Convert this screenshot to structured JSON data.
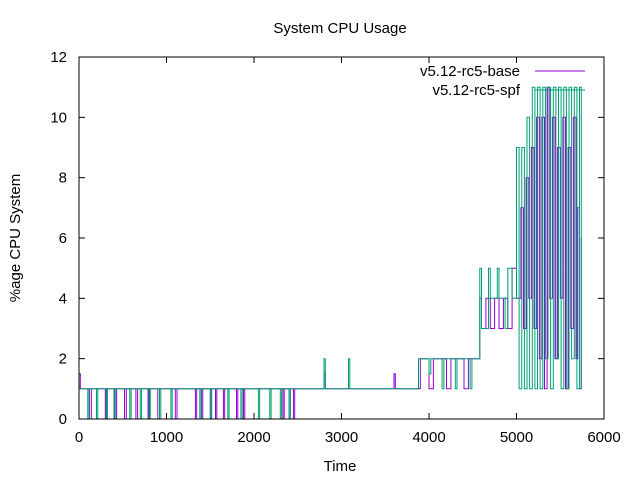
{
  "chart_data": {
    "type": "line",
    "title": "System CPU Usage",
    "xlabel": "Time",
    "ylabel": "%age CPU System",
    "xlim": [
      0,
      6000
    ],
    "ylim": [
      0,
      12
    ],
    "xticks": [
      0,
      1000,
      2000,
      3000,
      4000,
      5000,
      6000
    ],
    "yticks": [
      0,
      2,
      4,
      6,
      8,
      10,
      12
    ],
    "grid": false,
    "legend_position": "top-right",
    "step": "steps",
    "series": [
      {
        "name": "v5.12-rc5-base",
        "color": "#9400d3",
        "points": [
          [
            0,
            1.5
          ],
          [
            15,
            1
          ],
          [
            120,
            0
          ],
          [
            140,
            1
          ],
          [
            300,
            0
          ],
          [
            320,
            1
          ],
          [
            410,
            0
          ],
          [
            430,
            1
          ],
          [
            520,
            0
          ],
          [
            540,
            1
          ],
          [
            650,
            0
          ],
          [
            670,
            1
          ],
          [
            790,
            0
          ],
          [
            810,
            1
          ],
          [
            900,
            0
          ],
          [
            920,
            1
          ],
          [
            1100,
            0
          ],
          [
            1120,
            1
          ],
          [
            1330,
            0
          ],
          [
            1345,
            1
          ],
          [
            1400,
            0
          ],
          [
            1415,
            1
          ],
          [
            1500,
            0
          ],
          [
            1515,
            1
          ],
          [
            1560,
            0
          ],
          [
            1575,
            1
          ],
          [
            1650,
            0
          ],
          [
            1665,
            1
          ],
          [
            1800,
            0
          ],
          [
            1815,
            1
          ],
          [
            1880,
            0
          ],
          [
            1895,
            1
          ],
          [
            2330,
            0
          ],
          [
            2345,
            1
          ],
          [
            2400,
            0
          ],
          [
            2415,
            1
          ],
          [
            2450,
            0
          ],
          [
            2465,
            1
          ],
          [
            2800,
            1.5
          ],
          [
            2815,
            1
          ],
          [
            3600,
            1.5
          ],
          [
            3615,
            1
          ],
          [
            3900,
            2
          ],
          [
            4000,
            1
          ],
          [
            4050,
            2
          ],
          [
            4200,
            1
          ],
          [
            4250,
            2
          ],
          [
            4400,
            1
          ],
          [
            4450,
            2
          ],
          [
            4580,
            4
          ],
          [
            4600,
            3
          ],
          [
            4650,
            4
          ],
          [
            4700,
            3
          ],
          [
            4750,
            4
          ],
          [
            4800,
            3
          ],
          [
            4850,
            4
          ],
          [
            4900,
            3
          ],
          [
            4950,
            5
          ],
          [
            5000,
            4
          ],
          [
            5050,
            7
          ],
          [
            5080,
            3
          ],
          [
            5110,
            8
          ],
          [
            5140,
            4
          ],
          [
            5170,
            9
          ],
          [
            5200,
            3
          ],
          [
            5230,
            10
          ],
          [
            5260,
            2
          ],
          [
            5290,
            10
          ],
          [
            5320,
            1
          ],
          [
            5350,
            11
          ],
          [
            5380,
            4
          ],
          [
            5410,
            10
          ],
          [
            5440,
            2
          ],
          [
            5470,
            9
          ],
          [
            5500,
            4
          ],
          [
            5530,
            10
          ],
          [
            5560,
            1
          ],
          [
            5590,
            9
          ],
          [
            5620,
            3
          ],
          [
            5650,
            10
          ],
          [
            5680,
            2
          ],
          [
            5700,
            7
          ],
          [
            5720,
            1
          ],
          [
            5740,
            6
          ]
        ]
      },
      {
        "name": "v5.12-rc5-spf",
        "color": "#009e73",
        "points": [
          [
            0,
            1
          ],
          [
            100,
            0
          ],
          [
            115,
            1
          ],
          [
            200,
            0
          ],
          [
            215,
            1
          ],
          [
            310,
            0
          ],
          [
            325,
            1
          ],
          [
            400,
            0
          ],
          [
            415,
            1
          ],
          [
            580,
            0
          ],
          [
            595,
            1
          ],
          [
            700,
            0
          ],
          [
            715,
            1
          ],
          [
            800,
            0
          ],
          [
            815,
            1
          ],
          [
            920,
            0
          ],
          [
            935,
            1
          ],
          [
            1050,
            0
          ],
          [
            1065,
            1
          ],
          [
            1380,
            0
          ],
          [
            1395,
            1
          ],
          [
            1500,
            0
          ],
          [
            1515,
            1
          ],
          [
            1700,
            0
          ],
          [
            1715,
            1
          ],
          [
            1850,
            0
          ],
          [
            1865,
            1
          ],
          [
            2050,
            0
          ],
          [
            2065,
            1
          ],
          [
            2180,
            0
          ],
          [
            2195,
            1
          ],
          [
            2300,
            0
          ],
          [
            2315,
            1
          ],
          [
            2400,
            0
          ],
          [
            2415,
            1
          ],
          [
            2800,
            2
          ],
          [
            2815,
            1
          ],
          [
            3080,
            2
          ],
          [
            3095,
            1
          ],
          [
            3880,
            2
          ],
          [
            4000,
            1.5
          ],
          [
            4020,
            2
          ],
          [
            4150,
            1
          ],
          [
            4170,
            2
          ],
          [
            4300,
            1
          ],
          [
            4320,
            2
          ],
          [
            4470,
            1
          ],
          [
            4490,
            2
          ],
          [
            4580,
            5
          ],
          [
            4600,
            3
          ],
          [
            4680,
            5
          ],
          [
            4700,
            4
          ],
          [
            4780,
            5
          ],
          [
            4800,
            4
          ],
          [
            4870,
            3
          ],
          [
            4900,
            5
          ],
          [
            4950,
            4
          ],
          [
            5000,
            9
          ],
          [
            5030,
            1
          ],
          [
            5060,
            9
          ],
          [
            5090,
            1
          ],
          [
            5120,
            10
          ],
          [
            5150,
            1
          ],
          [
            5180,
            11
          ],
          [
            5210,
            1
          ],
          [
            5240,
            11
          ],
          [
            5270,
            1
          ],
          [
            5300,
            11
          ],
          [
            5330,
            2
          ],
          [
            5360,
            11
          ],
          [
            5390,
            1
          ],
          [
            5420,
            11
          ],
          [
            5450,
            2
          ],
          [
            5480,
            11
          ],
          [
            5510,
            1
          ],
          [
            5540,
            11
          ],
          [
            5570,
            1
          ],
          [
            5600,
            11
          ],
          [
            5630,
            2
          ],
          [
            5660,
            11
          ],
          [
            5690,
            1
          ],
          [
            5720,
            11
          ],
          [
            5740,
            1
          ]
        ]
      }
    ]
  }
}
